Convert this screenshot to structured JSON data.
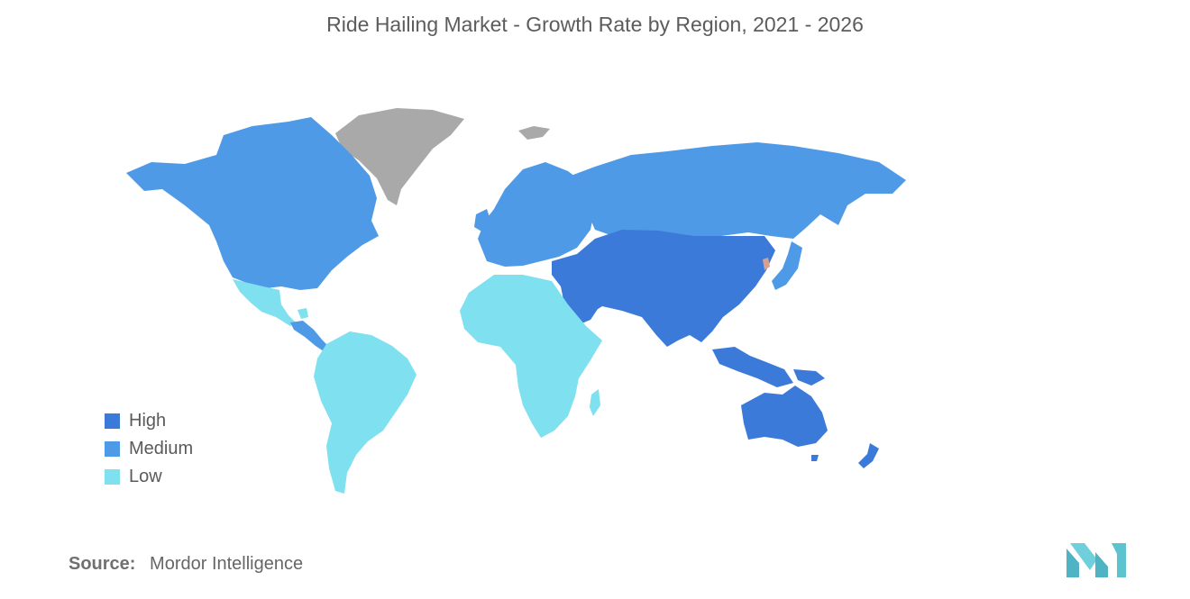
{
  "title": "Ride Hailing Market - Growth Rate by Region, 2021 - 2026",
  "legend": [
    {
      "label": "High",
      "color": "#3b7ad9"
    },
    {
      "label": "Medium",
      "color": "#4f9ae6"
    },
    {
      "label": "Low",
      "color": "#7fe0f0"
    }
  ],
  "no_data_color": "#a9a9a9",
  "source": {
    "label": "Source:",
    "value": "Mordor Intelligence"
  },
  "logo": {
    "name": "mordor-intelligence-logo",
    "color": "#5cc3cf"
  }
}
